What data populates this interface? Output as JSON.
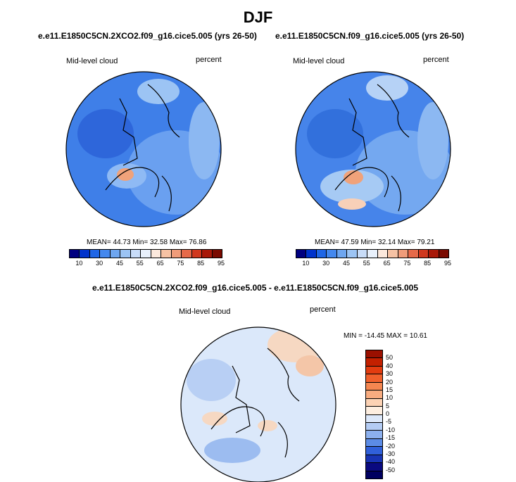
{
  "page_title": "DJF",
  "panels": [
    {
      "case_title": "e.e11.E1850C5CN.2XCO2.f09_g16.cice5.005 (yrs 26-50)",
      "variable": "Mid-level cloud",
      "units": "percent",
      "stats": "MEAN=  44.73  Min=  32.58  Max=  76.86",
      "mean": 44.73,
      "min": 32.58,
      "max": 76.86
    },
    {
      "case_title": "e.e11.E1850C5CN.f09_g16.cice5.005 (yrs 26-50)",
      "variable": "Mid-level cloud",
      "units": "percent",
      "stats": "MEAN=  47.59  Min=  32.14  Max=  79.21",
      "mean": 47.59,
      "min": 32.14,
      "max": 79.21
    }
  ],
  "abs_colorbar": {
    "labels": [
      "10",
      "30",
      "45",
      "55",
      "65",
      "75",
      "85",
      "95"
    ],
    "colors": [
      "#000080",
      "#0033cc",
      "#1f66e6",
      "#4488ee",
      "#6ea6f0",
      "#9cc4f4",
      "#c8dcf8",
      "#e8f0fb",
      "#fbe8dc",
      "#f6c2a4",
      "#f09c7a",
      "#e66a4a",
      "#d0381e",
      "#a81808",
      "#7a0a00"
    ]
  },
  "diff_panel": {
    "case_title": "e.e11.E1850C5CN.2XCO2.f09_g16.cice5.005 - e.e11.E1850C5CN.f09_g16.cice5.005",
    "variable": "Mid-level cloud",
    "units": "percent",
    "stats": "MIN = -14.45 MAX =  10.61",
    "min": -14.45,
    "max": 10.61
  },
  "diff_colorbar": {
    "labels": [
      "50",
      "40",
      "30",
      "20",
      "15",
      "10",
      "5",
      "0",
      "-5",
      "-10",
      "-15",
      "-20",
      "-30",
      "-40",
      "-50"
    ],
    "colors": [
      "#9b1000",
      "#c32000",
      "#e33c10",
      "#f0602c",
      "#f48650",
      "#f8ac80",
      "#fcd2b4",
      "#fdeee0",
      "#dce8fa",
      "#b4ccf4",
      "#8cb0ee",
      "#5c8ce6",
      "#3060da",
      "#1834b4",
      "#0a0a80",
      "#000060"
    ]
  }
}
